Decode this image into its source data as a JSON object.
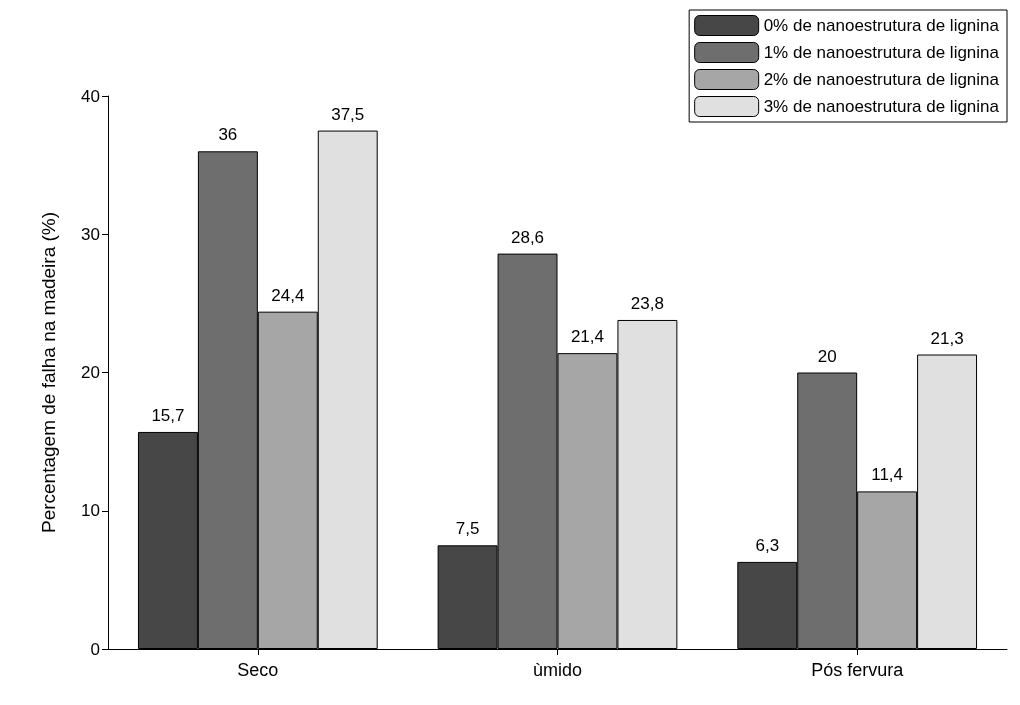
{
  "chart_data": {
    "type": "bar",
    "ylabel": "Percentagem de falha na madeira (%)",
    "categories": [
      "Seco",
      "ùmido",
      "Pós fervura"
    ],
    "series": [
      {
        "name": "0% de nanoestrutura de lignina",
        "color": "#474747",
        "values": [
          15.7,
          7.5,
          6.3
        ],
        "value_labels": [
          "15,7",
          "7,5",
          "6,3"
        ]
      },
      {
        "name": "1% de nanoestrutura de lignina",
        "color": "#6e6e6e",
        "values": [
          36,
          28.6,
          20
        ],
        "value_labels": [
          "36",
          "28,6",
          "20"
        ]
      },
      {
        "name": "2% de nanoestrutura de lignina",
        "color": "#a6a6a6",
        "values": [
          24.4,
          21.4,
          11.4
        ],
        "value_labels": [
          "24,4",
          "21,4",
          "11,4"
        ]
      },
      {
        "name": "3% de nanoestrutura de lignina",
        "color": "#e0e0e0",
        "values": [
          37.5,
          23.8,
          21.3
        ],
        "value_labels": [
          "37,5",
          "23,8",
          "21,3"
        ]
      }
    ],
    "ylim": [
      0,
      40
    ],
    "yticks": [
      0,
      10,
      20,
      30,
      40
    ],
    "grid": false,
    "legend": "top right"
  }
}
